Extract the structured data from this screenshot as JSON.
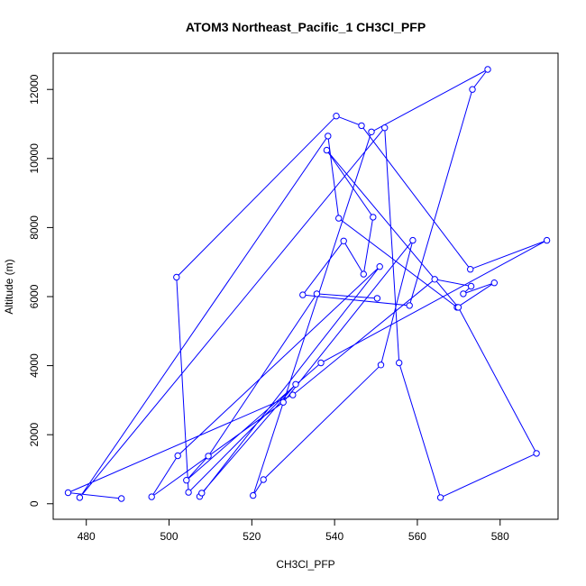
{
  "chart_data": {
    "type": "line",
    "title": "ATOM3 Northeast_Pacific_1 CH3Cl_PFP",
    "xlabel": "CH3Cl_PFP",
    "ylabel": "Altitude (m)",
    "xlim": [
      472,
      594
    ],
    "ylim": [
      -450,
      13050
    ],
    "xticks": [
      480,
      500,
      520,
      540,
      560,
      580
    ],
    "yticks": [
      0,
      2000,
      4000,
      6000,
      8000,
      10000,
      12000
    ],
    "grid": false,
    "legend": "none",
    "marker": "open-circle",
    "color": "#0000ff",
    "series": [
      {
        "x": [
          488.5,
          475.6,
          529.9,
          564.2,
          573.0,
          571.1,
          578.6,
          569.6,
          541.0,
          538.4,
          478.4,
          552.1,
          555.6,
          565.6,
          588.8,
          569.9,
          538.1,
          549.3,
          547.0,
          542.2,
          532.3,
          558.1,
          573.3,
          577.0,
          548.9,
          520.3,
          522.8,
          551.2,
          558.9,
          527.6,
          495.8,
          502.1,
          550.9,
          507.4,
          507.9,
          530.6,
          504.7,
          501.8,
          540.4,
          546.5,
          572.8,
          591.3,
          536.7,
          504.2,
          509.5,
          535.7,
          550.3
        ],
        "y": [
          150,
          320,
          3150,
          6500,
          6300,
          6080,
          6400,
          5690,
          8270,
          10650,
          180,
          10890,
          4080,
          180,
          1460,
          5690,
          10240,
          8300,
          6650,
          7610,
          6050,
          5740,
          12000,
          12580,
          10770,
          240,
          700,
          4020,
          7630,
          2940,
          200,
          1390,
          6870,
          210,
          310,
          3460,
          330,
          6560,
          11230,
          10950,
          6790,
          7630,
          4080,
          680,
          1380,
          6080,
          5950
        ]
      }
    ]
  }
}
